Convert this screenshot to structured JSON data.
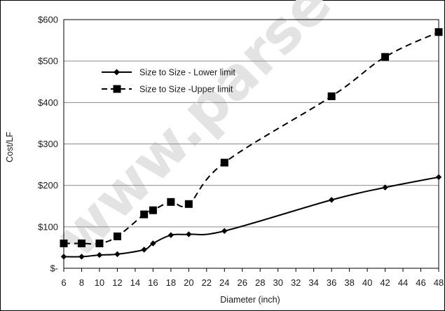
{
  "watermark": "www.parse",
  "chart_data": {
    "type": "line",
    "title": "",
    "xlabel": "Diameter (inch)",
    "ylabel": "Cost/LF",
    "xlim": [
      6,
      48
    ],
    "ylim": [
      0,
      600
    ],
    "x_ticks": [
      6,
      8,
      10,
      12,
      14,
      16,
      18,
      20,
      22,
      24,
      26,
      28,
      30,
      32,
      34,
      36,
      38,
      40,
      42,
      44,
      46,
      48
    ],
    "y_ticks": [
      0,
      100,
      200,
      300,
      400,
      500,
      600
    ],
    "y_tick_labels": [
      "$-",
      "$100",
      "$200",
      "$300",
      "$400",
      "$500",
      "$600"
    ],
    "grid": "horizontal",
    "legend_position": "upper-left",
    "series": [
      {
        "name": "Size to Size - Lower limit",
        "line_style": "solid",
        "marker": "diamond",
        "color": "#000000",
        "x": [
          6,
          8,
          10,
          12,
          15,
          16,
          18,
          20,
          24,
          36,
          42,
          48
        ],
        "values": [
          28,
          28,
          32,
          34,
          45,
          60,
          80,
          82,
          90,
          165,
          195,
          220
        ]
      },
      {
        "name": "Size to Size -Upper limit",
        "line_style": "dashed",
        "marker": "square",
        "color": "#000000",
        "x": [
          6,
          8,
          10,
          12,
          15,
          16,
          18,
          20,
          24,
          36,
          42,
          48
        ],
        "values": [
          60,
          60,
          60,
          77,
          130,
          140,
          160,
          155,
          255,
          415,
          510,
          570
        ]
      }
    ]
  }
}
